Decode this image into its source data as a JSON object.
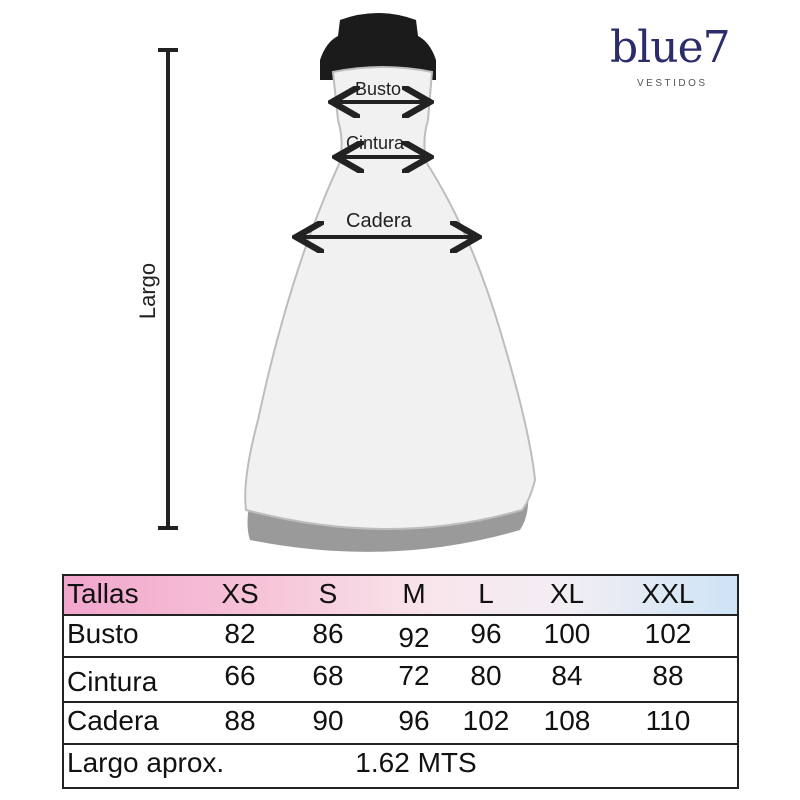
{
  "brand": {
    "name": "blue7",
    "tagline": "VESTIDOS",
    "color": "#2b2d6b"
  },
  "diagram": {
    "bust_label": "Busto",
    "waist_label": "Cintura",
    "hip_label": "Cadera",
    "length_label": "Largo"
  },
  "size_table": {
    "header_label": "Tallas",
    "sizes": [
      "XS",
      "S",
      "M",
      "L",
      "XL",
      "XXL"
    ],
    "rows": [
      {
        "label": "Busto",
        "values": [
          "82",
          "86",
          "92",
          "96",
          "100",
          "102"
        ]
      },
      {
        "label": "Cintura",
        "values": [
          "66",
          "68",
          "72",
          "80",
          "84",
          "88"
        ]
      },
      {
        "label": "Cadera",
        "values": [
          "88",
          "90",
          "96",
          "102",
          "108",
          "110"
        ]
      }
    ],
    "length_label": "Largo aprox.",
    "length_value": "1.62 MTS"
  }
}
